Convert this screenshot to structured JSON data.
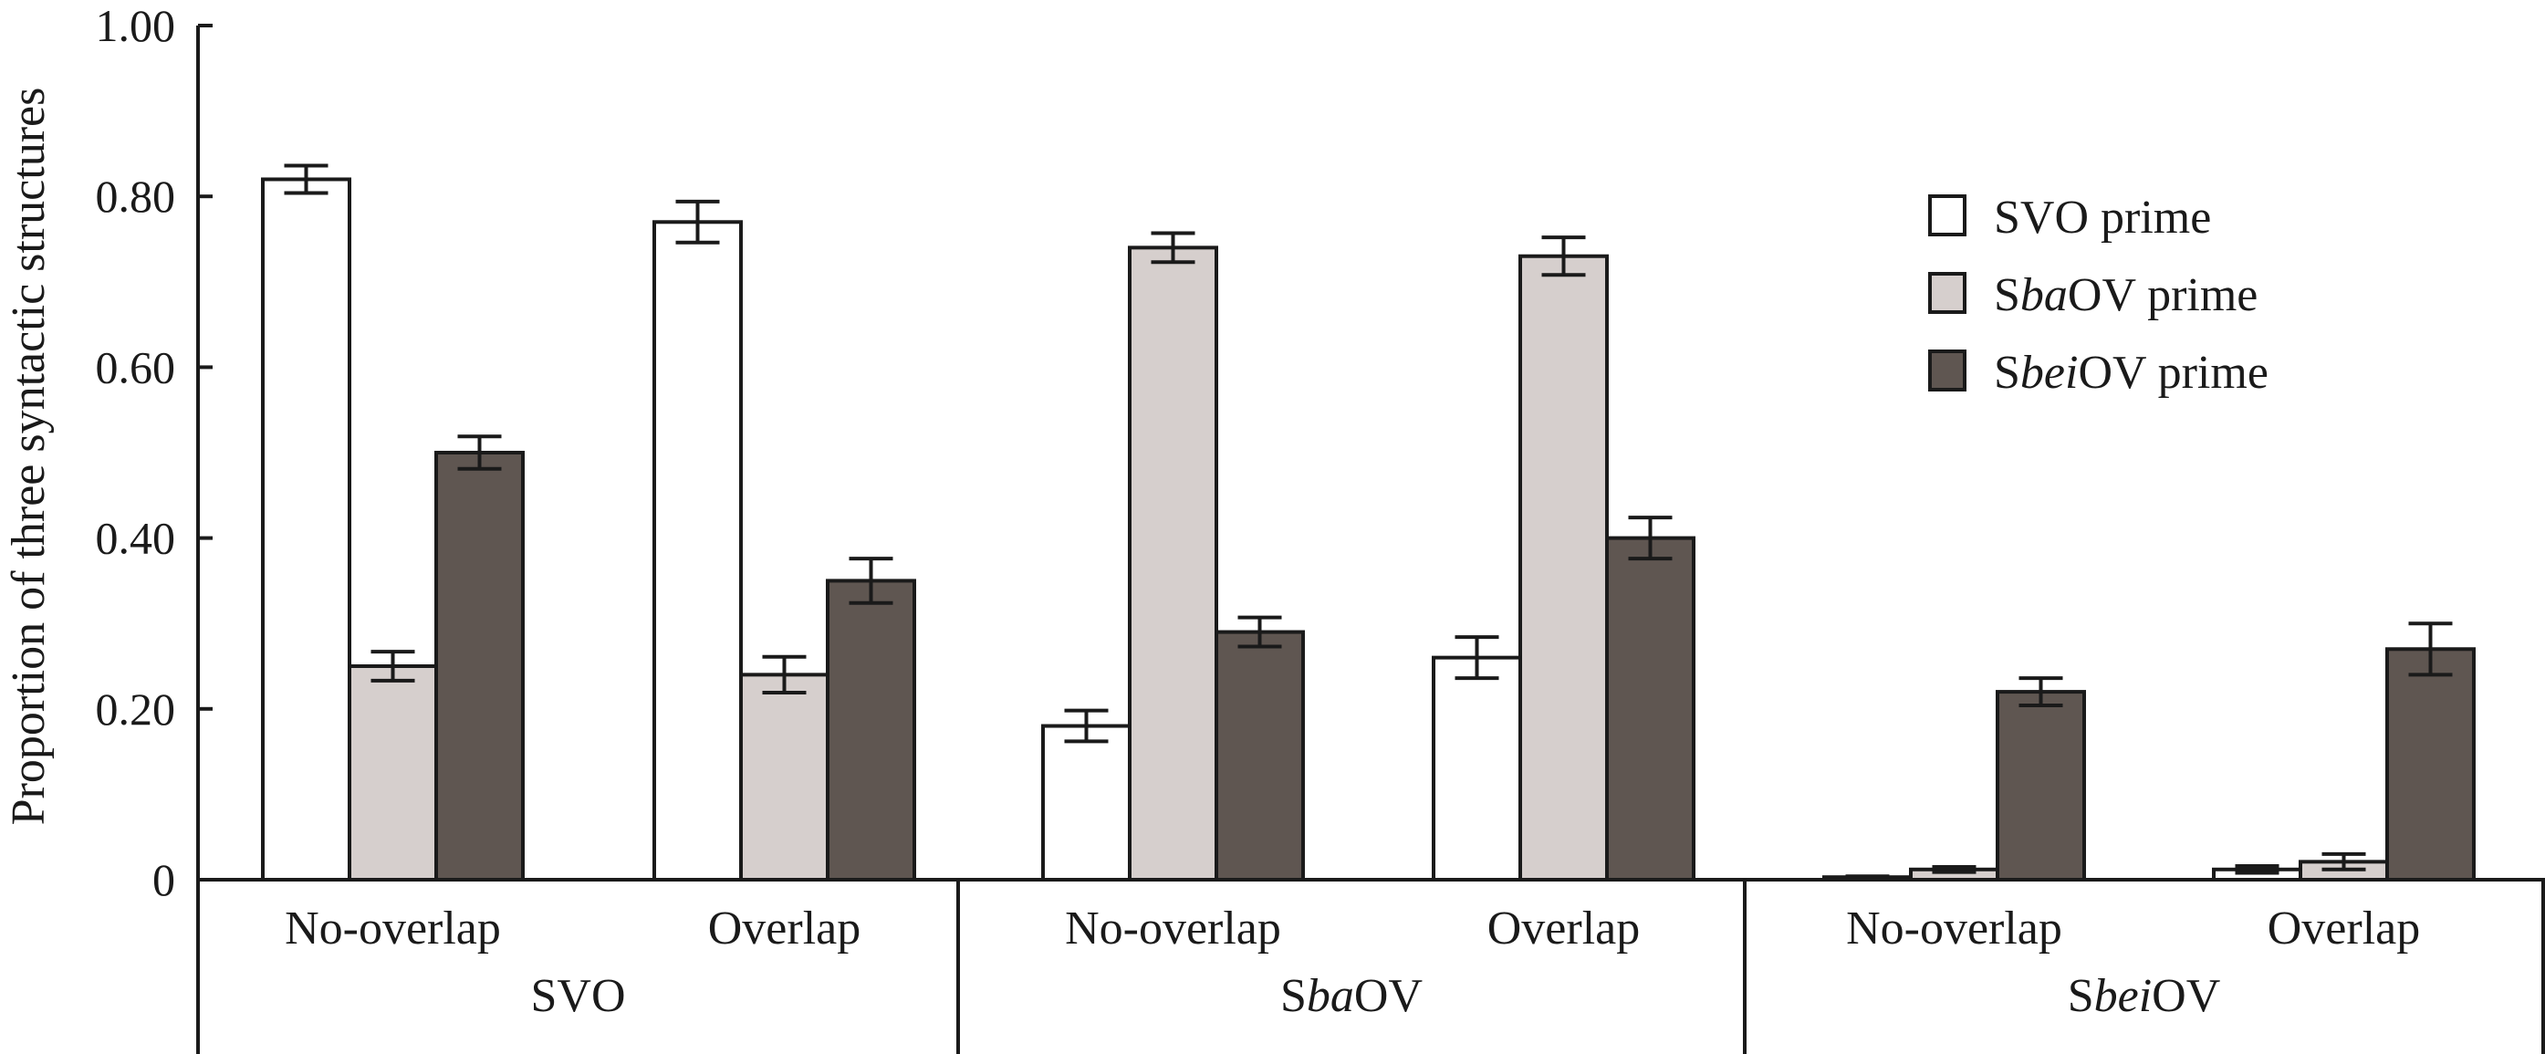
{
  "chart_data": {
    "type": "bar",
    "title": "",
    "xlabel": "",
    "ylabel": "Proportion of three syntactic structures",
    "ylim": [
      0,
      1.0
    ],
    "yticks": [
      {
        "value": 0,
        "label": "0"
      },
      {
        "value": 0.2,
        "label": "0.20"
      },
      {
        "value": 0.4,
        "label": "0.40"
      },
      {
        "value": 0.6,
        "label": "0.60"
      },
      {
        "value": 0.8,
        "label": "0.80"
      },
      {
        "value": 1.0,
        "label": "1.00"
      }
    ],
    "groups": [
      {
        "label_parts": [
          {
            "t": "S",
            "i": false
          },
          {
            "t": "VO",
            "i": false
          }
        ],
        "label": "SVO",
        "conditions": [
          "No-overlap",
          "Overlap"
        ]
      },
      {
        "label_parts": [
          {
            "t": "S",
            "i": false
          },
          {
            "t": "ba",
            "i": true
          },
          {
            "t": "OV",
            "i": false
          }
        ],
        "label": "SbaOV",
        "conditions": [
          "No-overlap",
          "Overlap"
        ]
      },
      {
        "label_parts": [
          {
            "t": "S",
            "i": false
          },
          {
            "t": "bei",
            "i": true
          },
          {
            "t": "OV",
            "i": false
          }
        ],
        "label": "SbeiOV",
        "conditions": [
          "No-overlap",
          "Overlap"
        ]
      }
    ],
    "categories": [
      "SVO No-overlap",
      "SVO Overlap",
      "SbaOV No-overlap",
      "SbaOV Overlap",
      "SbeiOV No-overlap",
      "SbeiOV Overlap"
    ],
    "series": [
      {
        "name": "SVO prime",
        "name_parts": [
          {
            "t": "SVO prime",
            "i": false
          }
        ],
        "color": "#ffffff",
        "values": [
          0.82,
          0.77,
          0.18,
          0.26,
          0.003,
          0.012
        ],
        "errors": [
          0.016,
          0.024,
          0.018,
          0.024,
          0.001,
          0.004
        ]
      },
      {
        "name": "SbaOV prime",
        "name_parts": [
          {
            "t": "S",
            "i": false
          },
          {
            "t": "ba",
            "i": true
          },
          {
            "t": "OV prime",
            "i": false
          }
        ],
        "color": "#d6cfcd",
        "values": [
          0.25,
          0.24,
          0.74,
          0.73,
          0.012,
          0.021
        ],
        "errors": [
          0.017,
          0.021,
          0.017,
          0.022,
          0.003,
          0.009
        ]
      },
      {
        "name": "SbeiOV prime",
        "name_parts": [
          {
            "t": "S",
            "i": false
          },
          {
            "t": "bei",
            "i": true
          },
          {
            "t": "OV prime",
            "i": false
          }
        ],
        "color": "#5f5651",
        "values": [
          0.5,
          0.35,
          0.29,
          0.4,
          0.22,
          0.27
        ],
        "errors": [
          0.019,
          0.026,
          0.017,
          0.024,
          0.016,
          0.03
        ]
      }
    ],
    "legend": "top-right",
    "grid": false,
    "error_bars": true
  }
}
